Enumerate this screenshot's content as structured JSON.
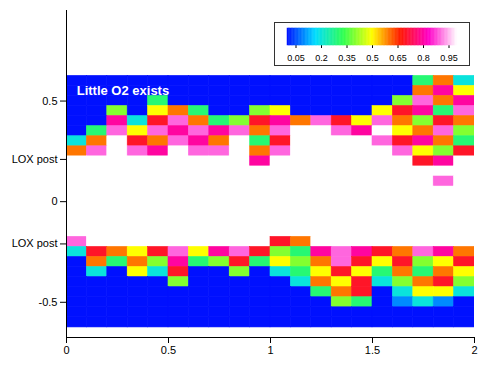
{
  "chart_data": {
    "type": "heatmap",
    "xlim": [
      0,
      2
    ],
    "ylim": [
      -0.675,
      0.95
    ],
    "xticks": [
      0,
      0.5,
      1,
      1.5,
      2
    ],
    "yticks": [
      -0.5,
      {
        "value": -0.21,
        "label": "LOX post"
      },
      0,
      {
        "value": 0.21,
        "label": "LOX post"
      },
      0.5
    ],
    "annotations": [
      {
        "text": "Little O2 exists",
        "x": 0.05,
        "y": 0.55
      }
    ],
    "colorbar": {
      "range": [
        0,
        1
      ],
      "ticks": [
        0.05,
        0.2,
        0.35,
        0.5,
        0.65,
        0.8,
        0.95
      ]
    },
    "cells": {
      "x": [
        0,
        0.1,
        0.2,
        0.3,
        0.4,
        0.5,
        0.6,
        0.7,
        0.8,
        0.9,
        1,
        1.1,
        1.2,
        1.3,
        1.4,
        1.5,
        1.6,
        1.7,
        1.8,
        1.9,
        2
      ],
      "y": [
        0.625,
        0.575,
        0.525,
        0.475,
        0.425,
        0.375,
        0.325,
        0.275,
        0.225,
        0.175,
        0.125,
        0.075,
        0.025,
        -0.025,
        -0.075,
        -0.125,
        -0.175,
        -0.225,
        -0.275,
        -0.325,
        -0.375,
        -0.425,
        -0.475,
        -0.525,
        -0.575,
        -0.625
      ],
      "values": [
        [
          0,
          0,
          0,
          0,
          0,
          0,
          0,
          0,
          0,
          0,
          0,
          0,
          0,
          0,
          0,
          0,
          0,
          0.3,
          0.6,
          0.2
        ],
        [
          0,
          0,
          0,
          0,
          0,
          0,
          0,
          0,
          0,
          0,
          0,
          0,
          0,
          0,
          0,
          0,
          0,
          0.6,
          0.8,
          0.5
        ],
        [
          0,
          0,
          0,
          0,
          0.3,
          0,
          0,
          0,
          0,
          0,
          0,
          0,
          0,
          0,
          0,
          0,
          0.4,
          0.9,
          0.6,
          0.8
        ],
        [
          0,
          0,
          0.4,
          0,
          0.5,
          0.6,
          0.3,
          0,
          0,
          0.4,
          0.5,
          0,
          0,
          0,
          0,
          0.5,
          0.7,
          0.8,
          0.3,
          0.9
        ],
        [
          0,
          0,
          0.8,
          0.2,
          0.7,
          0.9,
          0.6,
          0.3,
          0.4,
          0.7,
          0.8,
          0.6,
          0.9,
          0.7,
          0.5,
          0.9,
          0.6,
          0.4,
          0.7,
          0.6
        ],
        [
          0,
          0.3,
          0.9,
          0.5,
          0.9,
          0.8,
          0.9,
          0.8,
          0.9,
          0.6,
          0.9,
          1,
          1,
          0.9,
          0.8,
          1,
          0.5,
          0.6,
          0.9,
          0.4
        ],
        [
          0.2,
          0.6,
          1,
          0.7,
          0.6,
          0.9,
          0.8,
          0.6,
          1,
          0.3,
          0.7,
          1,
          1,
          1,
          1,
          0.9,
          0.7,
          0.8,
          0.6,
          0.3
        ],
        [
          0.6,
          0.9,
          1,
          0.9,
          0.8,
          1,
          0.9,
          0.9,
          1,
          0.6,
          0.9,
          1,
          1,
          1,
          1,
          1,
          0.9,
          0.5,
          0.4,
          0.7
        ],
        [
          1,
          1,
          1,
          1,
          1,
          1,
          1,
          1,
          1,
          0.8,
          1,
          1,
          1,
          1,
          1,
          1,
          1,
          0.7,
          0.8,
          1
        ],
        [
          1,
          1,
          1,
          1,
          1,
          1,
          1,
          1,
          1,
          1,
          1,
          1,
          1,
          1,
          1,
          1,
          1,
          1,
          1,
          1
        ],
        [
          1,
          1,
          1,
          1,
          1,
          1,
          1,
          1,
          1,
          1,
          1,
          1,
          1,
          1,
          1,
          1,
          1,
          1,
          0.9,
          1
        ],
        [
          1,
          1,
          1,
          1,
          1,
          1,
          1,
          1,
          1,
          1,
          1,
          1,
          1,
          1,
          1,
          1,
          1,
          1,
          1,
          1
        ],
        [
          1,
          1,
          1,
          1,
          1,
          1,
          1,
          1,
          1,
          1,
          1,
          1,
          1,
          1,
          1,
          1,
          1,
          1,
          1,
          1
        ],
        [
          1,
          1,
          1,
          1,
          1,
          1,
          1,
          1,
          1,
          1,
          1,
          1,
          1,
          1,
          1,
          1,
          1,
          1,
          1,
          1
        ],
        [
          1,
          1,
          1,
          1,
          1,
          1,
          1,
          1,
          1,
          1,
          1,
          1,
          1,
          1,
          1,
          1,
          1,
          1,
          1,
          1
        ],
        [
          1,
          1,
          1,
          1,
          1,
          1,
          1,
          1,
          1,
          1,
          1,
          1,
          1,
          1,
          1,
          1,
          1,
          1,
          1,
          1
        ],
        [
          0.9,
          1,
          1,
          1,
          1,
          1,
          1,
          1,
          1,
          1,
          0.7,
          0.6,
          1,
          1,
          1,
          1,
          1,
          1,
          1,
          1
        ],
        [
          0.2,
          0.7,
          0.6,
          0.5,
          0.7,
          0.9,
          0.5,
          0.8,
          0.9,
          0.7,
          0.4,
          0.3,
          0.8,
          0.9,
          0.8,
          0.7,
          0.6,
          0.9,
          0.8,
          0.6
        ],
        [
          0,
          0.6,
          0.3,
          0.6,
          0.4,
          0.8,
          0.3,
          0.4,
          0.7,
          0.3,
          0.5,
          0.4,
          0.6,
          0.9,
          0.7,
          0.5,
          0.7,
          0.4,
          0.5,
          0.7
        ],
        [
          0,
          0.2,
          0,
          0.5,
          0.2,
          0.7,
          0,
          0,
          0.4,
          0,
          0.2,
          0.3,
          0.5,
          0.7,
          0.5,
          0.3,
          0.6,
          0.3,
          0.6,
          0.5
        ],
        [
          0,
          0,
          0,
          0,
          0,
          0.4,
          0,
          0,
          0,
          0,
          0,
          0.2,
          0.6,
          0.5,
          0.7,
          0.2,
          0.4,
          0.6,
          0.7,
          0.4
        ],
        [
          0,
          0,
          0,
          0,
          0,
          0,
          0,
          0,
          0,
          0,
          0,
          0,
          0.3,
          0.6,
          0.7,
          0,
          0.2,
          0.5,
          0.5,
          0.2
        ],
        [
          0,
          0,
          0,
          0,
          0,
          0,
          0,
          0,
          0,
          0,
          0,
          0,
          0,
          0.4,
          0.3,
          0,
          0.1,
          0.2,
          0.1,
          0
        ],
        [
          0,
          0,
          0,
          0,
          0,
          0,
          0,
          0,
          0,
          0,
          0,
          0,
          0,
          0,
          0,
          0,
          0,
          0,
          0,
          0
        ],
        [
          0,
          0,
          0,
          0,
          0,
          0,
          0,
          0,
          0,
          0,
          0,
          0,
          0,
          0,
          0,
          0,
          0,
          0,
          0,
          0
        ]
      ]
    }
  }
}
